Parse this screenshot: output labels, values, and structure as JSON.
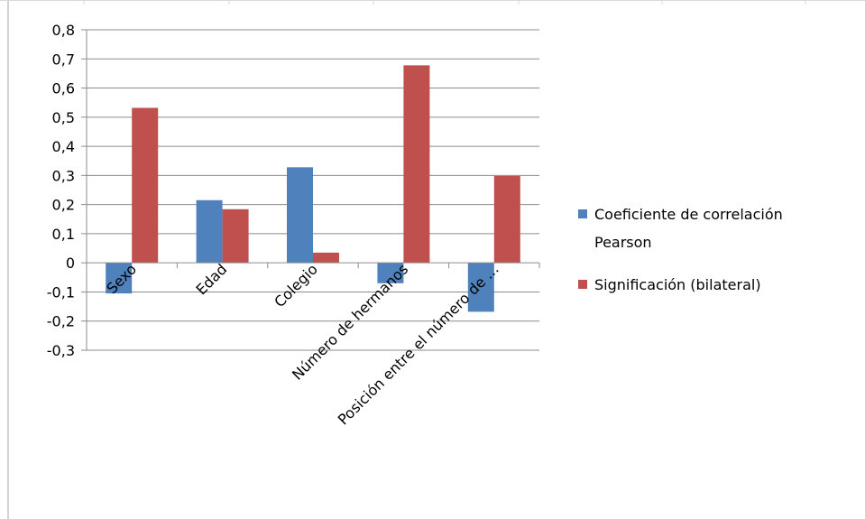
{
  "chart_data": {
    "type": "bar",
    "categories": [
      "Sexo",
      "Edad",
      "Colegio",
      "Número de hermanos",
      "Posición entre el número de ..."
    ],
    "series": [
      {
        "name": "Coeficiente de correlación Pearson",
        "values": [
          -0.105,
          0.215,
          0.328,
          -0.07,
          -0.168
        ]
      },
      {
        "name": "Significación (bilateral)",
        "values": [
          0.532,
          0.184,
          0.035,
          0.678,
          0.298
        ]
      }
    ],
    "yticks": [
      "0,8",
      "0,7",
      "0,6",
      "0,5",
      "0,4",
      "0,3",
      "0,2",
      "0,1",
      "0",
      "-0,1",
      "-0,2",
      "-0,3"
    ],
    "ylim": [
      -0.3,
      0.8
    ],
    "grid": true,
    "legend": "right",
    "legend_lines": [
      [
        "Coeficiente de correlación",
        "Pearson"
      ],
      [
        "Significación (bilateral)"
      ]
    ],
    "colors": [
      "#4f81bd",
      "#c0504d"
    ]
  }
}
